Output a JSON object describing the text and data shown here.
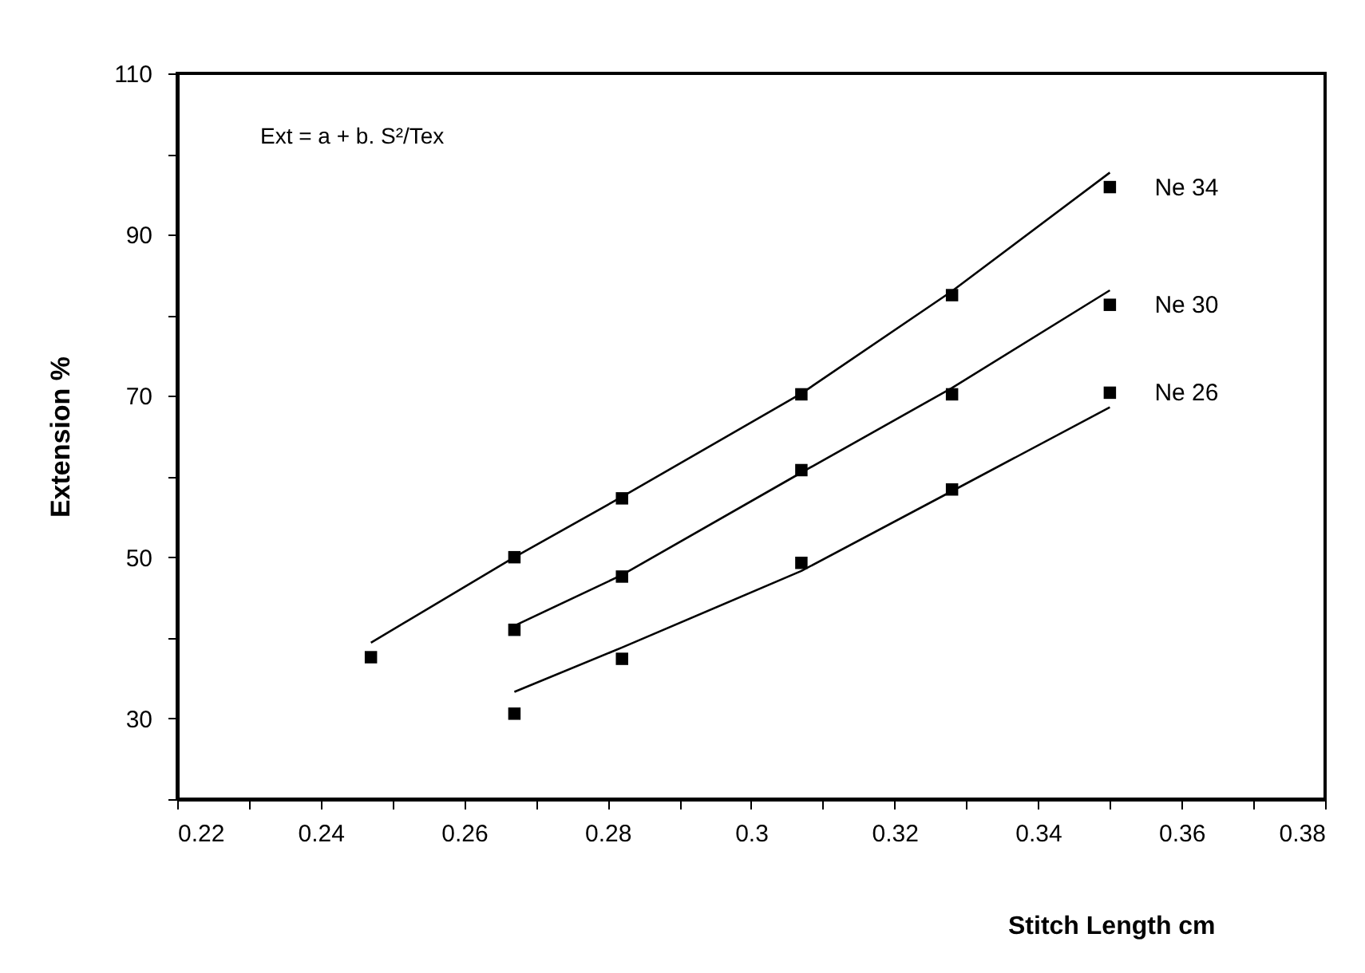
{
  "chart_data": {
    "type": "scatter",
    "xlabel": "Stitch Length cm",
    "ylabel": "Extension %",
    "annotations": [
      "Ext = a + b. S²/Tex"
    ],
    "xlim": [
      0.22,
      0.38
    ],
    "xticks": [
      0.22,
      {
        "value": 0.23,
        "label": null
      },
      0.24,
      {
        "value": 0.25,
        "label": null
      },
      0.26,
      {
        "value": 0.27,
        "label": null
      },
      0.28,
      {
        "value": 0.29,
        "label": null
      },
      0.3,
      {
        "value": 0.31,
        "label": null
      },
      0.32,
      {
        "value": 0.33,
        "label": null
      },
      0.34,
      {
        "value": 0.35,
        "label": null
      },
      0.36,
      {
        "value": 0.37,
        "label": null
      },
      0.38
    ],
    "ylim": [
      20,
      110
    ],
    "yticks": [
      {
        "value": 20,
        "label": null
      },
      30,
      {
        "value": 40,
        "label": null
      },
      50,
      {
        "value": 60,
        "label": null
      },
      70,
      {
        "value": 80,
        "label": null
      },
      90,
      {
        "value": 100,
        "label": null
      },
      110
    ],
    "grid": false,
    "legend": false,
    "marker": "square",
    "series": [
      {
        "name": "Ne 34",
        "color": "#000000",
        "x": [
          0.247,
          0.267,
          0.282,
          0.307,
          0.328,
          0.35
        ],
        "values": [
          37.6,
          50.0,
          57.3,
          70.2,
          82.5,
          95.9
        ]
      },
      {
        "name": "Ne 30",
        "color": "#000000",
        "x": [
          0.267,
          0.282,
          0.307,
          0.328,
          0.35
        ],
        "values": [
          41.0,
          47.6,
          60.8,
          70.2,
          81.3
        ]
      },
      {
        "name": "Ne 26",
        "color": "#000000",
        "x": [
          0.267,
          0.282,
          0.307,
          0.328,
          0.35
        ],
        "values": [
          30.6,
          37.4,
          49.3,
          58.4,
          70.4
        ]
      },
      {
        "type": "line",
        "marker": "none",
        "color": "#000000",
        "x": [
          0.247,
          0.267,
          0.282,
          0.307,
          0.328,
          0.35
        ],
        "values": [
          39.4,
          50.0,
          57.5,
          70.3,
          83.0,
          97.7
        ]
      },
      {
        "type": "line",
        "marker": "none",
        "color": "#000000",
        "x": [
          0.267,
          0.282,
          0.307,
          0.328,
          0.35
        ],
        "values": [
          41.5,
          47.8,
          60.5,
          71.0,
          83.1
        ]
      },
      {
        "type": "line",
        "marker": "none",
        "color": "#000000",
        "x": [
          0.267,
          0.282,
          0.307,
          0.328,
          0.35
        ],
        "values": [
          33.3,
          38.8,
          48.3,
          58.2,
          68.6
        ]
      }
    ]
  }
}
